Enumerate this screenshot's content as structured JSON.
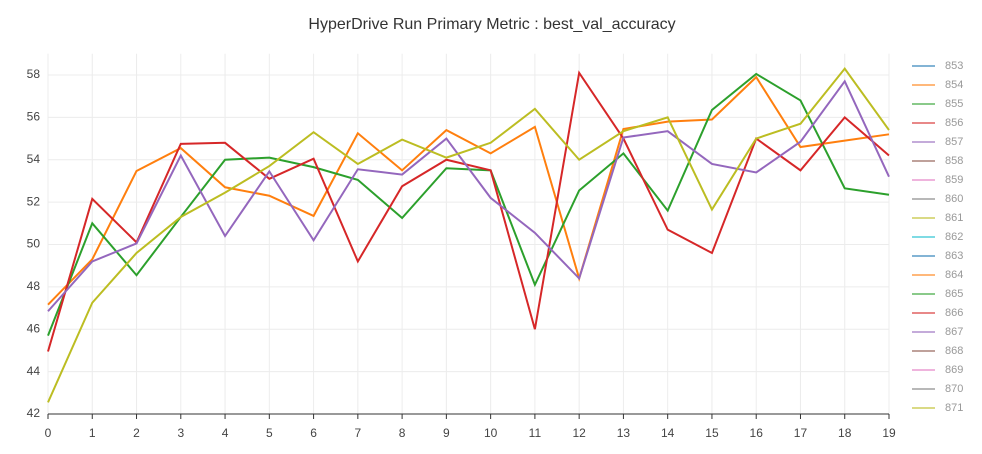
{
  "chart_data": {
    "type": "line",
    "title": "HyperDrive Run Primary Metric : best_val_accuracy",
    "x": [
      0,
      1,
      2,
      3,
      4,
      5,
      6,
      7,
      8,
      9,
      10,
      11,
      12,
      13,
      14,
      15,
      16,
      17,
      18,
      19
    ],
    "xlim": [
      0,
      19
    ],
    "xticks": [
      0,
      1,
      2,
      3,
      4,
      5,
      6,
      7,
      8,
      9,
      10,
      11,
      12,
      13,
      14,
      15,
      16,
      17,
      18,
      19
    ],
    "ylim": [
      42,
      59
    ],
    "yticks": [
      42,
      44,
      46,
      48,
      50,
      52,
      54,
      56,
      58
    ],
    "grid": true,
    "legend": "right",
    "series": [
      {
        "name": "853",
        "color": "#1f77b4",
        "values": [
          null,
          null,
          null,
          null,
          null,
          null,
          null,
          null,
          null,
          null,
          null,
          null,
          null,
          null,
          null,
          null,
          null,
          null,
          null,
          null
        ]
      },
      {
        "name": "854",
        "color": "#ff7f0e",
        "values": [
          47.16,
          49.3,
          53.47,
          54.55,
          52.7,
          52.3,
          51.35,
          55.25,
          53.5,
          55.4,
          54.3,
          55.55,
          48.4,
          55.45,
          55.8,
          55.9,
          57.9,
          54.6,
          54.9,
          55.2
        ]
      },
      {
        "name": "855",
        "color": "#2ca02c",
        "values": [
          null,
          null,
          null,
          null,
          null,
          null,
          null,
          null,
          null,
          null,
          null,
          null,
          null,
          null,
          null,
          null,
          null,
          null,
          null,
          null
        ]
      },
      {
        "name": "856",
        "color": "#d62728",
        "values": [
          null,
          null,
          null,
          null,
          null,
          null,
          null,
          null,
          null,
          null,
          null,
          null,
          null,
          null,
          null,
          null,
          null,
          null,
          null,
          null
        ]
      },
      {
        "name": "857",
        "color": "#9467bd",
        "values": [
          null,
          null,
          null,
          null,
          null,
          null,
          null,
          null,
          null,
          null,
          null,
          null,
          null,
          null,
          null,
          null,
          null,
          null,
          null,
          null
        ]
      },
      {
        "name": "858",
        "color": "#8c564b",
        "values": [
          null,
          null,
          null,
          null,
          null,
          null,
          null,
          null,
          null,
          null,
          null,
          null,
          null,
          null,
          null,
          null,
          null,
          null,
          null,
          null
        ]
      },
      {
        "name": "859",
        "color": "#e377c2",
        "values": [
          null,
          null,
          null,
          null,
          null,
          null,
          null,
          null,
          null,
          null,
          null,
          null,
          null,
          null,
          null,
          null,
          null,
          null,
          null,
          null
        ]
      },
      {
        "name": "860",
        "color": "#7f7f7f",
        "values": [
          null,
          null,
          null,
          null,
          null,
          null,
          null,
          null,
          null,
          null,
          null,
          null,
          null,
          null,
          null,
          null,
          null,
          null,
          null,
          null
        ]
      },
      {
        "name": "861",
        "color": "#bcbd22",
        "values": [
          null,
          null,
          null,
          null,
          null,
          null,
          null,
          null,
          null,
          null,
          null,
          null,
          null,
          null,
          null,
          null,
          null,
          null,
          null,
          null
        ]
      },
      {
        "name": "862",
        "color": "#17becf",
        "values": [
          null,
          null,
          null,
          null,
          null,
          null,
          null,
          null,
          null,
          null,
          null,
          null,
          null,
          null,
          null,
          null,
          null,
          null,
          null,
          null
        ]
      },
      {
        "name": "863",
        "color": "#1f77b4",
        "values": [
          null,
          null,
          null,
          null,
          null,
          null,
          null,
          null,
          null,
          null,
          null,
          null,
          null,
          null,
          null,
          null,
          null,
          null,
          null,
          null
        ]
      },
      {
        "name": "864",
        "color": "#ff7f0e",
        "values": [
          null,
          null,
          null,
          null,
          null,
          null,
          null,
          null,
          null,
          null,
          null,
          null,
          null,
          null,
          null,
          null,
          null,
          null,
          null,
          null
        ]
      },
      {
        "name": "865",
        "color": "#2ca02c",
        "values": [
          45.7,
          51.0,
          48.55,
          51.3,
          54.0,
          54.1,
          53.65,
          53.05,
          51.25,
          53.6,
          53.5,
          48.1,
          52.55,
          54.3,
          51.6,
          56.35,
          58.05,
          56.8,
          52.65,
          52.35
        ]
      },
      {
        "name": "866",
        "color": "#d62728",
        "values": [
          44.95,
          52.15,
          50.1,
          54.75,
          54.8,
          53.1,
          54.05,
          49.2,
          52.75,
          54.0,
          53.5,
          46.0,
          58.1,
          55.0,
          50.7,
          49.6,
          55.0,
          53.5,
          56.0,
          54.2
        ]
      },
      {
        "name": "867",
        "color": "#9467bd",
        "values": [
          46.85,
          49.2,
          50.05,
          54.2,
          50.4,
          53.45,
          50.2,
          53.55,
          53.3,
          55.0,
          52.2,
          50.55,
          48.4,
          55.05,
          55.35,
          53.8,
          53.4,
          54.85,
          57.7,
          53.2
        ]
      },
      {
        "name": "868",
        "color": "#8c564b",
        "values": [
          null,
          null,
          null,
          null,
          null,
          null,
          null,
          null,
          null,
          null,
          null,
          null,
          null,
          null,
          null,
          null,
          null,
          null,
          null,
          null
        ]
      },
      {
        "name": "869",
        "color": "#e377c2",
        "values": [
          null,
          null,
          null,
          null,
          null,
          null,
          null,
          null,
          null,
          null,
          null,
          null,
          null,
          null,
          null,
          null,
          null,
          null,
          null,
          null
        ]
      },
      {
        "name": "870",
        "color": "#7f7f7f",
        "values": [
          null,
          null,
          null,
          null,
          null,
          null,
          null,
          null,
          null,
          null,
          null,
          null,
          null,
          null,
          null,
          null,
          null,
          null,
          null,
          null
        ]
      },
      {
        "name": "871",
        "color": "#bcbd22",
        "values": [
          42.55,
          47.25,
          49.6,
          51.3,
          52.45,
          53.7,
          55.3,
          53.8,
          54.95,
          54.1,
          54.8,
          56.4,
          54.0,
          55.35,
          56.0,
          51.65,
          55.0,
          55.7,
          58.3,
          55.4
        ]
      }
    ]
  }
}
